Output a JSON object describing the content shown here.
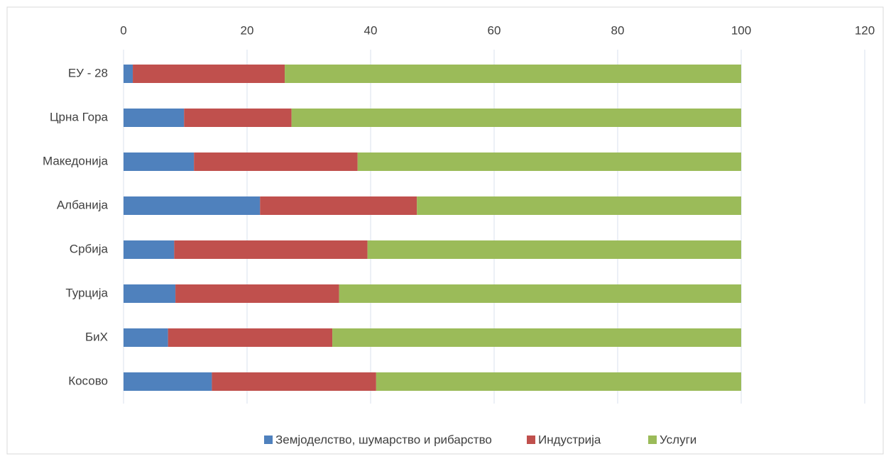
{
  "chart_data": {
    "type": "stacked_bar_horizontal",
    "categories": [
      "ЕУ - 28",
      "Црна Гора",
      "Македонија",
      "Албанија",
      "Србија",
      "Турција",
      "БиХ",
      "Косово"
    ],
    "series": [
      {
        "name": "Земјоделство, шумарство и рибарство",
        "color": "#4f81bd",
        "values": [
          1.5,
          9.8,
          11.4,
          22.1,
          8.2,
          8.4,
          7.2,
          14.3
        ]
      },
      {
        "name": "Индустрија",
        "color": "#c0504d",
        "values": [
          24.6,
          17.4,
          26.5,
          25.4,
          31.3,
          26.5,
          26.6,
          26.6
        ]
      },
      {
        "name": "Услуги",
        "color": "#9bbb59",
        "values": [
          73.9,
          72.8,
          62.1,
          52.5,
          60.5,
          65.1,
          66.2,
          59.1
        ]
      }
    ],
    "xlim": [
      0,
      120
    ],
    "xticks": [
      0,
      20,
      40,
      60,
      80,
      100,
      120
    ],
    "grid": true,
    "legend": "bottom"
  }
}
